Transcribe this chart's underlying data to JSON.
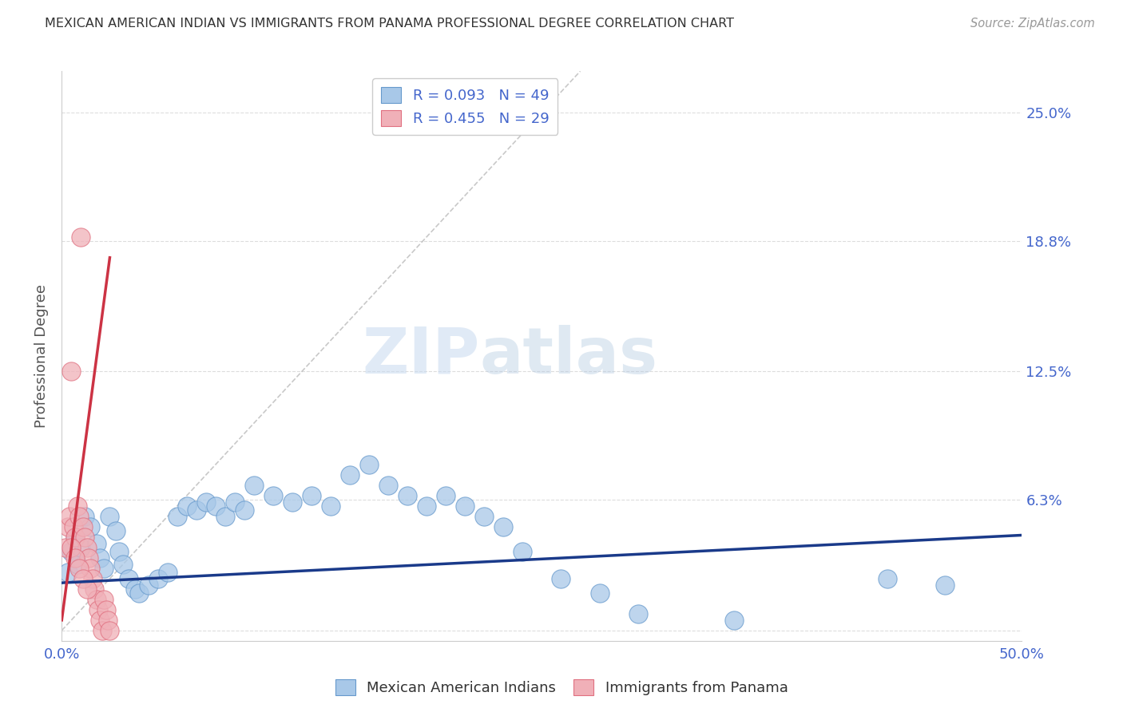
{
  "title": "MEXICAN AMERICAN INDIAN VS IMMIGRANTS FROM PANAMA PROFESSIONAL DEGREE CORRELATION CHART",
  "source": "Source: ZipAtlas.com",
  "ylabel": "Professional Degree",
  "xlim": [
    0.0,
    0.5
  ],
  "ylim": [
    -0.005,
    0.27
  ],
  "xtick_vals": [
    0.0,
    0.1,
    0.2,
    0.3,
    0.4,
    0.5
  ],
  "xticklabels": [
    "0.0%",
    "",
    "",
    "",
    "",
    "50.0%"
  ],
  "ytick_vals": [
    0.0,
    0.063,
    0.125,
    0.188,
    0.25
  ],
  "ytick_labels_right": [
    "",
    "6.3%",
    "12.5%",
    "18.8%",
    "25.0%"
  ],
  "legend_entry_blue": "R = 0.093   N = 49",
  "legend_entry_pink": "R = 0.455   N = 29",
  "watermark_zip": "ZIP",
  "watermark_atlas": "atlas",
  "blue_scatter_face": "#a8c8e8",
  "blue_scatter_edge": "#6699cc",
  "pink_scatter_face": "#f0b0b8",
  "pink_scatter_edge": "#e07080",
  "blue_line_color": "#1a3a8a",
  "pink_line_color": "#cc3344",
  "diag_line_color": "#bbbbbb",
  "grid_color": "#dddddd",
  "tick_label_color": "#4466cc",
  "label_color": "#555555",
  "blue_scatter_x": [
    0.005,
    0.007,
    0.003,
    0.008,
    0.01,
    0.012,
    0.015,
    0.018,
    0.02,
    0.022,
    0.025,
    0.028,
    0.03,
    0.032,
    0.035,
    0.038,
    0.04,
    0.045,
    0.05,
    0.055,
    0.06,
    0.065,
    0.07,
    0.075,
    0.08,
    0.085,
    0.09,
    0.095,
    0.1,
    0.11,
    0.12,
    0.13,
    0.14,
    0.15,
    0.16,
    0.17,
    0.18,
    0.19,
    0.2,
    0.21,
    0.22,
    0.23,
    0.24,
    0.26,
    0.28,
    0.3,
    0.35,
    0.43,
    0.46
  ],
  "blue_scatter_y": [
    0.038,
    0.045,
    0.028,
    0.032,
    0.04,
    0.055,
    0.05,
    0.042,
    0.035,
    0.03,
    0.055,
    0.048,
    0.038,
    0.032,
    0.025,
    0.02,
    0.018,
    0.022,
    0.025,
    0.028,
    0.055,
    0.06,
    0.058,
    0.062,
    0.06,
    0.055,
    0.062,
    0.058,
    0.07,
    0.065,
    0.062,
    0.065,
    0.06,
    0.075,
    0.08,
    0.07,
    0.065,
    0.06,
    0.065,
    0.06,
    0.055,
    0.05,
    0.038,
    0.025,
    0.018,
    0.008,
    0.005,
    0.025,
    0.022
  ],
  "pink_scatter_x": [
    0.002,
    0.003,
    0.004,
    0.005,
    0.006,
    0.007,
    0.008,
    0.009,
    0.01,
    0.011,
    0.012,
    0.013,
    0.014,
    0.015,
    0.016,
    0.017,
    0.018,
    0.019,
    0.02,
    0.021,
    0.022,
    0.023,
    0.024,
    0.025,
    0.005,
    0.007,
    0.009,
    0.011,
    0.013
  ],
  "pink_scatter_y": [
    0.04,
    0.05,
    0.055,
    0.125,
    0.05,
    0.045,
    0.06,
    0.055,
    0.19,
    0.05,
    0.045,
    0.04,
    0.035,
    0.03,
    0.025,
    0.02,
    0.015,
    0.01,
    0.005,
    0.0,
    0.015,
    0.01,
    0.005,
    0.0,
    0.04,
    0.035,
    0.03,
    0.025,
    0.02
  ],
  "blue_line_x": [
    0.0,
    0.5
  ],
  "blue_line_y": [
    0.023,
    0.046
  ],
  "pink_line_x": [
    0.0,
    0.025
  ],
  "pink_line_y": [
    0.005,
    0.18
  ],
  "diag_line_x": [
    0.0,
    0.27
  ],
  "diag_line_y": [
    0.0,
    0.27
  ]
}
